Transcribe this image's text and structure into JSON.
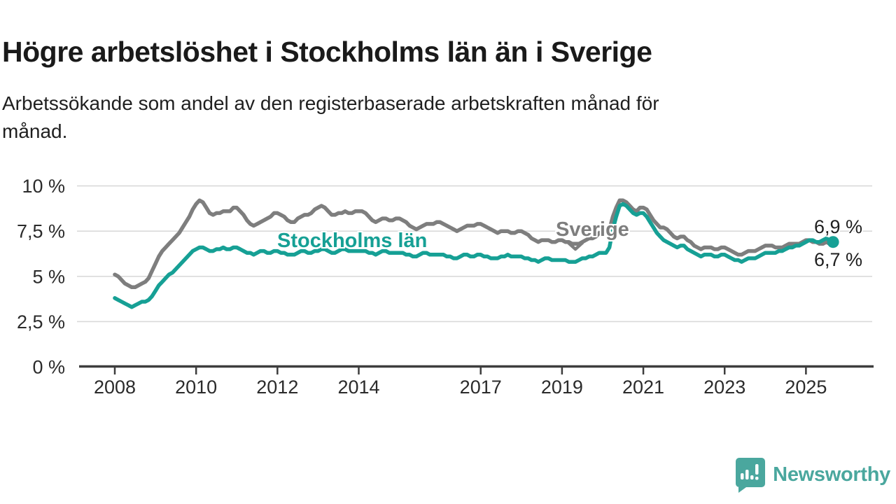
{
  "header": {
    "title": "Högre arbetslöshet i Stockholms län än i Sverige",
    "subtitle_line1": "Arbetssökande som andel av den registerbaserade arbetskraften månad för",
    "subtitle_line2": "månad."
  },
  "colors": {
    "stockholm_line": "#16a095",
    "sverige_line": "#7e7e7e",
    "gridline": "#d9d9d9",
    "axis": "#3d3d3d",
    "logo_teal": "#4aa79e"
  },
  "annotations": {
    "stockholm_series_label": "Stockholms län",
    "sverige_series_label": "Sverige",
    "end_value_stockholm": "6,9 %",
    "end_value_sverige": "6,7 %"
  },
  "footer": {
    "brand": "Newsworthy",
    "logo_icon": "newsworthy-speech-bubble-chart-icon"
  },
  "chart_data": {
    "type": "line",
    "title": "Högre arbetslöshet i Stockholms län än i Sverige",
    "subtitle": "Arbetssökande som andel av den registerbaserade arbetskraften månad för månad.",
    "x_unit": "month",
    "x_start": "2008-01",
    "x_end": "2025-09",
    "ylim": [
      0,
      10
    ],
    "grid": true,
    "legend_position": "inline-labels",
    "y_ticks": [
      {
        "label": "10 %",
        "value": 10
      },
      {
        "label": "7,5 %",
        "value": 7.5
      },
      {
        "label": "5 %",
        "value": 5
      },
      {
        "label": "2,5 %",
        "value": 2.5
      },
      {
        "label": "0 %",
        "value": 0
      }
    ],
    "x_ticks": [
      {
        "label": "2008",
        "year": 2008
      },
      {
        "label": "2010",
        "year": 2010
      },
      {
        "label": "2012",
        "year": 2012
      },
      {
        "label": "2014",
        "year": 2014
      },
      {
        "label": "2017",
        "year": 2017
      },
      {
        "label": "2019",
        "year": 2019
      },
      {
        "label": "2021",
        "year": 2021
      },
      {
        "label": "2023",
        "year": 2023
      },
      {
        "label": "2025",
        "year": 2025
      }
    ],
    "series": [
      {
        "name": "Sverige",
        "color": "#7e7e7e",
        "end_label": "6,7 %",
        "values": [
          5.1,
          5.0,
          4.8,
          4.6,
          4.5,
          4.4,
          4.4,
          4.5,
          4.6,
          4.7,
          4.9,
          5.3,
          5.7,
          6.1,
          6.4,
          6.6,
          6.8,
          7.0,
          7.2,
          7.4,
          7.7,
          8.0,
          8.3,
          8.7,
          9.0,
          9.2,
          9.1,
          8.8,
          8.5,
          8.4,
          8.5,
          8.5,
          8.6,
          8.6,
          8.6,
          8.8,
          8.8,
          8.6,
          8.4,
          8.1,
          7.9,
          7.8,
          7.9,
          8.0,
          8.1,
          8.2,
          8.3,
          8.5,
          8.5,
          8.4,
          8.3,
          8.1,
          8.0,
          8.0,
          8.2,
          8.3,
          8.4,
          8.4,
          8.5,
          8.7,
          8.8,
          8.9,
          8.8,
          8.6,
          8.4,
          8.4,
          8.5,
          8.5,
          8.6,
          8.5,
          8.5,
          8.6,
          8.6,
          8.6,
          8.5,
          8.3,
          8.1,
          8.0,
          8.1,
          8.2,
          8.2,
          8.1,
          8.1,
          8.2,
          8.2,
          8.1,
          8.0,
          7.8,
          7.7,
          7.6,
          7.7,
          7.8,
          7.9,
          7.9,
          7.9,
          8.0,
          8.0,
          7.9,
          7.8,
          7.7,
          7.6,
          7.5,
          7.6,
          7.7,
          7.8,
          7.8,
          7.8,
          7.9,
          7.9,
          7.8,
          7.7,
          7.6,
          7.5,
          7.4,
          7.5,
          7.5,
          7.5,
          7.4,
          7.4,
          7.5,
          7.5,
          7.4,
          7.3,
          7.1,
          7.0,
          6.9,
          7.0,
          7.0,
          7.0,
          6.9,
          6.9,
          7.0,
          7.0,
          6.9,
          6.9,
          6.8,
          6.8,
          6.8,
          6.9,
          7.0,
          7.1,
          7.1,
          7.2,
          7.4,
          7.4,
          7.4,
          7.6,
          8.3,
          8.8,
          9.2,
          9.2,
          9.1,
          8.9,
          8.7,
          8.6,
          8.8,
          8.8,
          8.7,
          8.4,
          8.1,
          7.9,
          7.7,
          7.7,
          7.6,
          7.4,
          7.2,
          7.1,
          7.2,
          7.2,
          7.0,
          6.9,
          6.7,
          6.6,
          6.5,
          6.6,
          6.6,
          6.6,
          6.5,
          6.5,
          6.6,
          6.6,
          6.5,
          6.4,
          6.3,
          6.2,
          6.2,
          6.3,
          6.4,
          6.4,
          6.4,
          6.5,
          6.6,
          6.7,
          6.7,
          6.7,
          6.6,
          6.6,
          6.6,
          6.7,
          6.8,
          6.8,
          6.8,
          6.8,
          6.9,
          7.0,
          7.0,
          6.9,
          6.9,
          6.8,
          6.8,
          6.9,
          6.8,
          6.7
        ]
      },
      {
        "name": "Stockholms län",
        "color": "#16a095",
        "end_label": "6,9 %",
        "values": [
          3.8,
          3.7,
          3.6,
          3.5,
          3.4,
          3.3,
          3.4,
          3.5,
          3.6,
          3.6,
          3.7,
          3.9,
          4.2,
          4.5,
          4.7,
          4.9,
          5.1,
          5.2,
          5.4,
          5.6,
          5.8,
          6.0,
          6.2,
          6.4,
          6.5,
          6.6,
          6.6,
          6.5,
          6.4,
          6.4,
          6.5,
          6.5,
          6.6,
          6.5,
          6.5,
          6.6,
          6.6,
          6.5,
          6.4,
          6.3,
          6.3,
          6.2,
          6.3,
          6.4,
          6.4,
          6.3,
          6.3,
          6.4,
          6.4,
          6.3,
          6.3,
          6.2,
          6.2,
          6.2,
          6.3,
          6.4,
          6.4,
          6.3,
          6.3,
          6.4,
          6.4,
          6.5,
          6.5,
          6.4,
          6.3,
          6.3,
          6.4,
          6.5,
          6.5,
          6.4,
          6.4,
          6.4,
          6.4,
          6.4,
          6.4,
          6.3,
          6.3,
          6.2,
          6.3,
          6.4,
          6.4,
          6.3,
          6.3,
          6.3,
          6.3,
          6.3,
          6.2,
          6.2,
          6.1,
          6.1,
          6.2,
          6.3,
          6.3,
          6.2,
          6.2,
          6.2,
          6.2,
          6.2,
          6.1,
          6.1,
          6.0,
          6.0,
          6.1,
          6.2,
          6.2,
          6.1,
          6.1,
          6.2,
          6.2,
          6.1,
          6.1,
          6.0,
          6.0,
          6.0,
          6.1,
          6.1,
          6.2,
          6.1,
          6.1,
          6.1,
          6.1,
          6.0,
          6.0,
          5.9,
          5.9,
          5.8,
          5.9,
          6.0,
          6.0,
          5.9,
          5.9,
          5.9,
          5.9,
          5.9,
          5.8,
          5.8,
          5.8,
          5.9,
          6.0,
          6.0,
          6.1,
          6.1,
          6.2,
          6.3,
          6.3,
          6.3,
          6.6,
          7.6,
          8.3,
          8.9,
          9.0,
          8.9,
          8.7,
          8.5,
          8.4,
          8.5,
          8.5,
          8.3,
          8.0,
          7.7,
          7.4,
          7.2,
          7.0,
          6.9,
          6.8,
          6.7,
          6.6,
          6.7,
          6.7,
          6.5,
          6.4,
          6.3,
          6.2,
          6.1,
          6.2,
          6.2,
          6.2,
          6.1,
          6.1,
          6.2,
          6.2,
          6.1,
          6.0,
          5.9,
          5.9,
          5.8,
          5.9,
          6.0,
          6.0,
          6.0,
          6.1,
          6.2,
          6.3,
          6.3,
          6.3,
          6.3,
          6.4,
          6.4,
          6.5,
          6.6,
          6.6,
          6.7,
          6.7,
          6.8,
          6.9,
          7.0,
          7.0,
          6.9,
          6.9,
          7.0,
          7.1,
          7.0,
          6.9
        ]
      }
    ]
  }
}
